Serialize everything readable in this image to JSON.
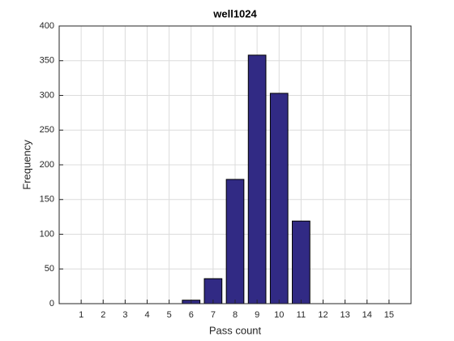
{
  "chart_data": {
    "type": "bar",
    "title": "well1024",
    "x_label": "Pass count",
    "y_label": "Frequency",
    "x": [
      1,
      2,
      3,
      4,
      5,
      6,
      7,
      8,
      9,
      10,
      11,
      12,
      13,
      14,
      15
    ],
    "values": [
      0,
      0,
      0,
      0,
      0,
      5,
      36,
      179,
      358,
      303,
      119,
      0,
      0,
      0,
      0
    ],
    "color": "#312a84",
    "edge_color": "#000000",
    "bar_width": 0.8,
    "xlim": [
      0,
      16
    ],
    "xticks": [
      1,
      2,
      3,
      4,
      5,
      6,
      7,
      8,
      9,
      10,
      11,
      12,
      13,
      14,
      15
    ],
    "ylim": [
      0,
      400
    ],
    "yticks": [
      0,
      50,
      100,
      150,
      200,
      250,
      300,
      350,
      400
    ],
    "grid": true
  }
}
